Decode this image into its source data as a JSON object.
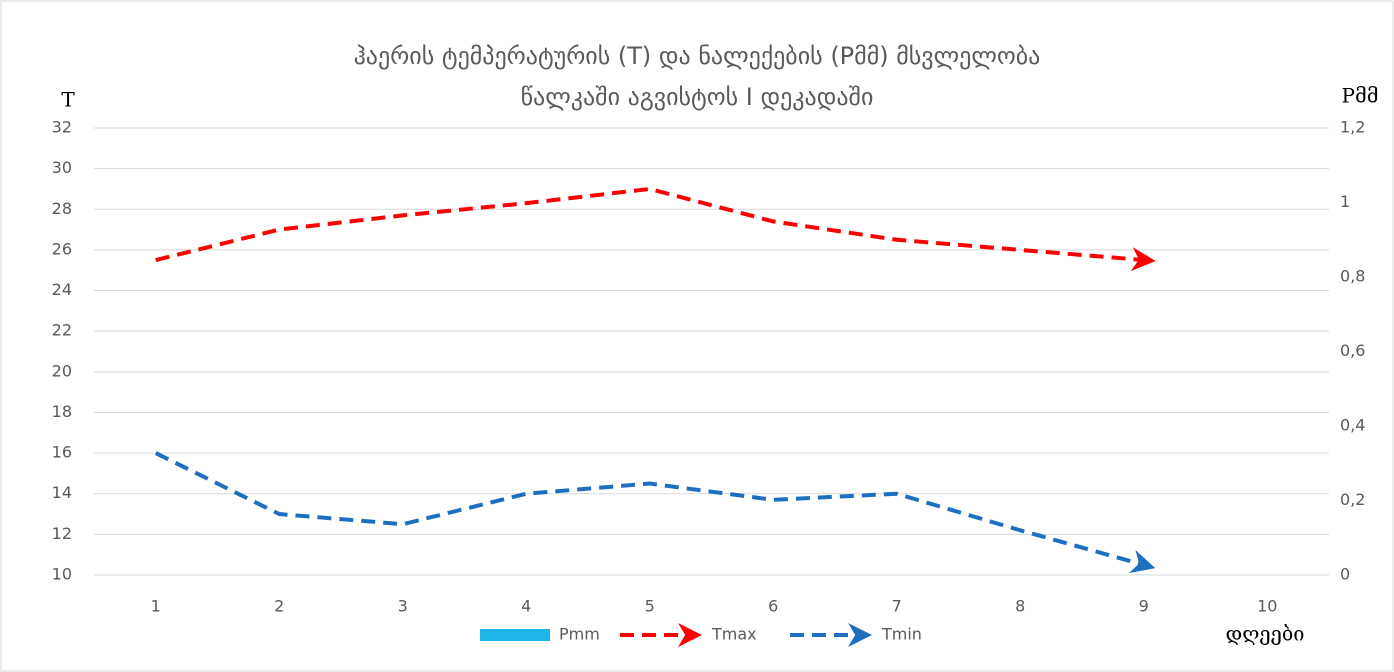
{
  "chart_data": {
    "type": "line",
    "title": [
      "ჰაერის ტემპერატურის (T) და ნალექების (Pმმ) მსვლელობა",
      "წალკაში აგვისტოს I დეკადაში"
    ],
    "y_label": "T",
    "y2_label": "Pმმ",
    "x_label": "დღეები",
    "categories": [
      "1",
      "2",
      "3",
      "4",
      "5",
      "6",
      "7",
      "8",
      "9",
      "10"
    ],
    "series": [
      {
        "name": "Pmm",
        "color": "#1fb5e8",
        "axis": "y2",
        "values": [
          null,
          null,
          null,
          null,
          null,
          null,
          null,
          null,
          null,
          null
        ]
      },
      {
        "name": "Tmax",
        "color": "#ff0000",
        "values": [
          25.5,
          27,
          27.7,
          28.3,
          29,
          27.4,
          26.5,
          26,
          25.5,
          null
        ]
      },
      {
        "name": "Tmin",
        "color": "#1f6fc0",
        "values": [
          16,
          13,
          12.5,
          14,
          14.5,
          13.7,
          14,
          12.2,
          10.5,
          null
        ]
      }
    ],
    "ylim": [
      10,
      32
    ],
    "yticks": [
      10,
      12,
      14,
      16,
      18,
      20,
      22,
      24,
      26,
      28,
      30,
      32
    ],
    "y2lim": [
      0,
      1.2
    ],
    "y2ticks": [
      0,
      {
        "value": 0.2,
        "label": "0,2"
      },
      {
        "value": 0.4,
        "label": "0,4"
      },
      {
        "value": 0.6,
        "label": "0,6"
      },
      {
        "value": 0.8,
        "label": "0,8"
      },
      1,
      {
        "value": 1.2,
        "label": "1,2"
      }
    ],
    "grid": true
  }
}
